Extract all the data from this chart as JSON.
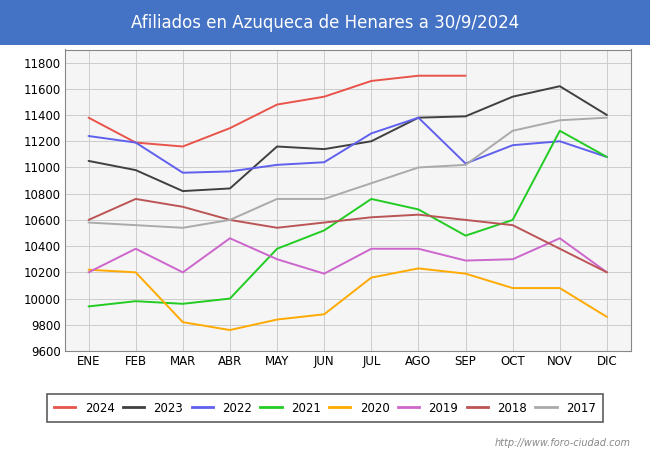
{
  "title": "Afiliados en Azuqueca de Henares a 30/9/2024",
  "title_bg_color": "#4472c4",
  "title_text_color": "#ffffff",
  "ylim": [
    9600,
    11900
  ],
  "yticks": [
    9600,
    9800,
    10000,
    10200,
    10400,
    10600,
    10800,
    11000,
    11200,
    11400,
    11600,
    11800
  ],
  "months": [
    "ENE",
    "FEB",
    "MAR",
    "ABR",
    "MAY",
    "JUN",
    "JUL",
    "AGO",
    "SEP",
    "OCT",
    "NOV",
    "DIC"
  ],
  "watermark": "http://www.foro-ciudad.com",
  "series": {
    "2024": {
      "color": "#e8534a",
      "data": [
        11380,
        11190,
        11160,
        11300,
        11480,
        11540,
        11660,
        11700,
        11700,
        null,
        null,
        null
      ]
    },
    "2023": {
      "color": "#404040",
      "data": [
        11050,
        10980,
        10820,
        10840,
        11160,
        11140,
        11200,
        11380,
        11390,
        11540,
        11620,
        11400
      ]
    },
    "2022": {
      "color": "#6060ee",
      "data": [
        11240,
        11190,
        10960,
        10970,
        11020,
        11040,
        11260,
        11380,
        11030,
        11170,
        11200,
        11080
      ]
    },
    "2021": {
      "color": "#22cc22",
      "data": [
        9940,
        9980,
        9960,
        10000,
        10380,
        10520,
        10760,
        10680,
        10480,
        10600,
        11280,
        11080
      ]
    },
    "2020": {
      "color": "#ffaa00",
      "data": [
        10220,
        10200,
        9820,
        9760,
        9840,
        9880,
        10160,
        10230,
        10190,
        10080,
        10080,
        9860
      ]
    },
    "2019": {
      "color": "#cc66cc",
      "data": [
        10200,
        10380,
        10200,
        10460,
        10300,
        10190,
        10380,
        10380,
        10290,
        10300,
        10460,
        10200
      ]
    },
    "2018": {
      "color": "#bb5555",
      "data": [
        10600,
        10760,
        10700,
        10600,
        10540,
        10580,
        10620,
        10640,
        10600,
        10560,
        10380,
        10200
      ]
    },
    "2017": {
      "color": "#aaaaaa",
      "data": [
        10580,
        10560,
        10540,
        10600,
        10760,
        10760,
        10880,
        11000,
        11020,
        11280,
        11360,
        11380
      ]
    }
  },
  "series_order": [
    "2024",
    "2023",
    "2022",
    "2021",
    "2020",
    "2019",
    "2018",
    "2017"
  ]
}
